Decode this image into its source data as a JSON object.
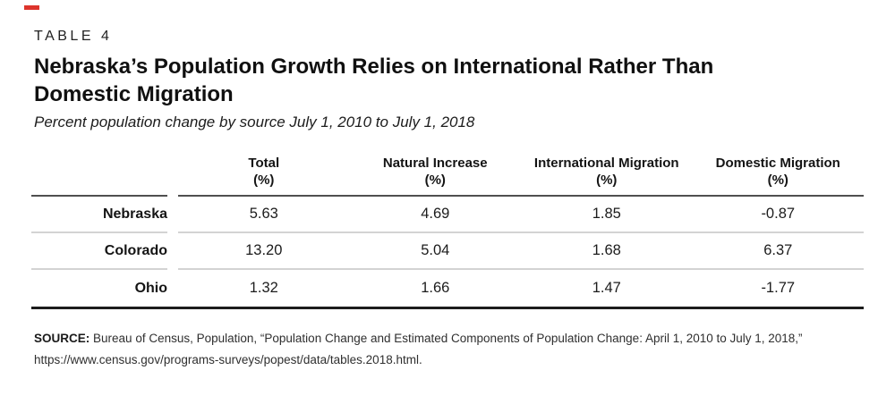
{
  "brand": {
    "accent_color": "#dd342c"
  },
  "header": {
    "table_label": "TABLE 4",
    "title_line1": "Nebraska’s Population Growth Relies on International Rather Than",
    "title_line2": "Domestic Migration",
    "subtitle": "Percent population change by source July 1, 2010 to July 1, 2018"
  },
  "table": {
    "columns": [
      {
        "line1": "Total",
        "line2": "(%)"
      },
      {
        "line1": "Natural Increase",
        "line2": "(%)"
      },
      {
        "line1": "International Migration",
        "line2": "(%)"
      },
      {
        "line1": "Domestic Migration",
        "line2": "(%)"
      }
    ],
    "rows": [
      {
        "label": "Nebraska",
        "values": [
          "5.63",
          "4.69",
          "1.85",
          "-0.87"
        ]
      },
      {
        "label": "Colorado",
        "values": [
          "13.20",
          "5.04",
          "1.68",
          "6.37"
        ]
      },
      {
        "label": "Ohio",
        "values": [
          "1.32",
          "1.66",
          "1.47",
          "-1.77"
        ]
      }
    ]
  },
  "source": {
    "label": "SOURCE:",
    "text_line1": "Bureau of Census, Population, “Population Change and Estimated Components of Population Change: April 1, 2010 to July 1, 2018,”",
    "text_line2": "https://www.census.gov/programs-surveys/popest/data/tables.2018.html."
  },
  "chart_data": {
    "type": "table",
    "table_label": "TABLE 4",
    "title": "Nebraska’s Population Growth Relies on International Rather Than Domestic Migration",
    "subtitle": "Percent population change by source July 1, 2010 to July 1, 2018",
    "columns": [
      "Total (%)",
      "Natural Increase (%)",
      "International Migration (%)",
      "Domestic Migration (%)"
    ],
    "rows": [
      {
        "label": "Nebraska",
        "total_pct": 5.63,
        "natural_increase_pct": 4.69,
        "international_migration_pct": 1.85,
        "domestic_migration_pct": -0.87
      },
      {
        "label": "Colorado",
        "total_pct": 13.2,
        "natural_increase_pct": 5.04,
        "international_migration_pct": 1.68,
        "domestic_migration_pct": 6.37
      },
      {
        "label": "Ohio",
        "total_pct": 1.32,
        "natural_increase_pct": 1.66,
        "international_migration_pct": 1.47,
        "domestic_migration_pct": -1.77
      }
    ],
    "source": "Bureau of Census, Population, “Population Change and Estimated Components of Population Change: April 1, 2010 to July 1, 2018,” https://www.census.gov/programs-surveys/popest/data/tables.2018.html."
  }
}
